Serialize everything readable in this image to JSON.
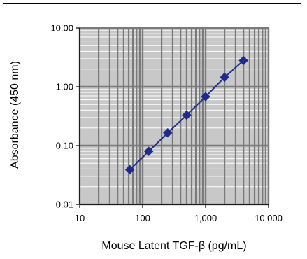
{
  "chart_data": {
    "type": "line",
    "title": "",
    "xlabel": "Mouse Latent TGF-β (pg/mL)",
    "ylabel": "Absorbance (450 nm)",
    "x_scale": "log",
    "y_scale": "log",
    "xlim": [
      10,
      10000
    ],
    "ylim": [
      0.01,
      10
    ],
    "x_ticks": [
      "10",
      "100",
      "1,000",
      "10,000"
    ],
    "y_ticks": [
      "0.01",
      "0.10",
      "1.00",
      "10.00"
    ],
    "grid": true,
    "legend": "none",
    "series": [
      {
        "color": "#1f2a8c",
        "marker": "diamond",
        "x": [
          62.5,
          125,
          250,
          500,
          1000,
          2000,
          4000
        ],
        "y": [
          0.039,
          0.08,
          0.165,
          0.33,
          0.68,
          1.45,
          2.8
        ]
      }
    ]
  },
  "colors": {
    "plot_background": "#c8c8c8",
    "major_grid": "#7a7a7a",
    "minor_grid": "#ffffff",
    "series": "#1f2a8c"
  }
}
